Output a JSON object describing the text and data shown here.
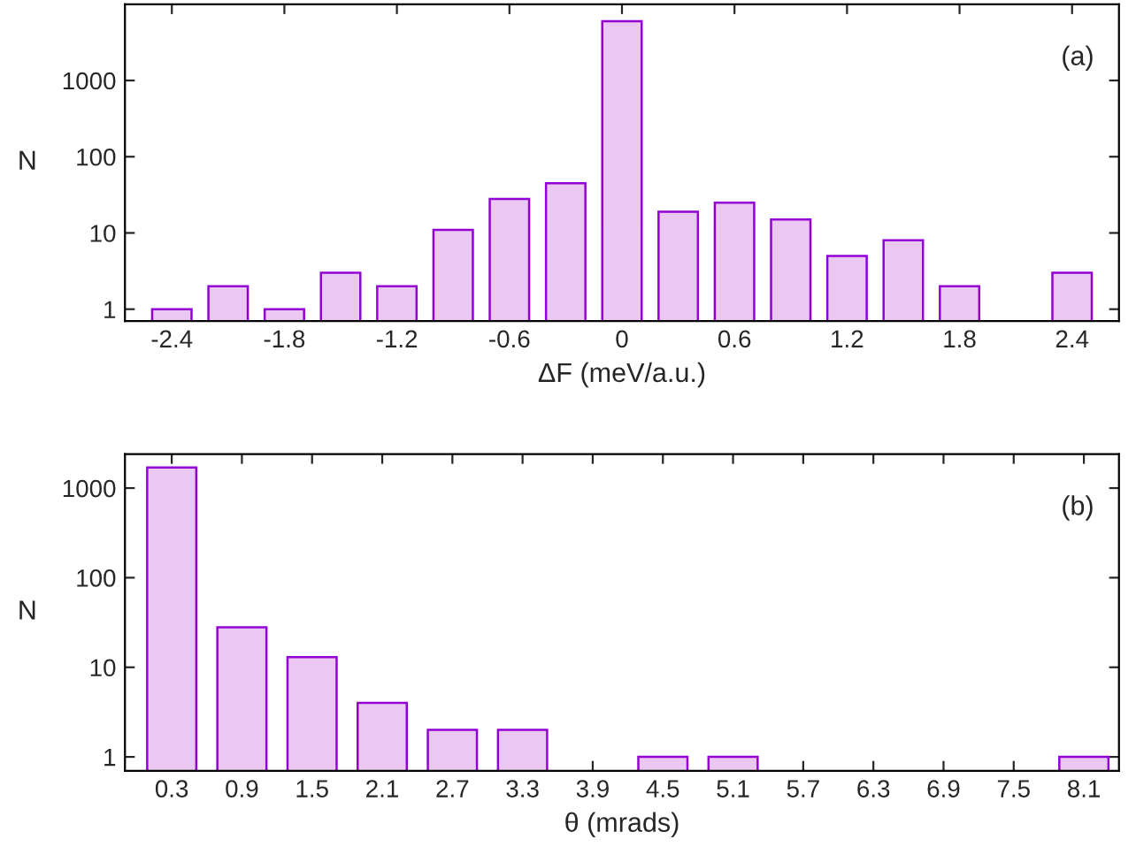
{
  "chart_data": [
    {
      "type": "bar",
      "xlabel": "ΔF (meV/a.u.)",
      "ylabel": "N",
      "annotations": [
        "(a)"
      ],
      "log": "y",
      "grid": false,
      "x": [
        -2.4,
        -2.1,
        -1.8,
        -1.5,
        -1.2,
        -0.9,
        -0.6,
        -0.3,
        0,
        0.3,
        0.6,
        0.9,
        1.2,
        1.5,
        1.8,
        2.4
      ],
      "series": [
        {
          "color": "#eac8f2",
          "values": [
            1,
            2,
            1,
            3,
            2,
            11,
            28,
            45,
            6000,
            19,
            25,
            15,
            5,
            8,
            2,
            3
          ]
        }
      ],
      "xlim": [
        -2.65,
        2.65
      ],
      "xticks": [
        -2.4,
        -1.8,
        -1.2,
        -0.6,
        0,
        0.6,
        1.2,
        1.8,
        2.4
      ],
      "ylim": [
        0.7,
        10000
      ],
      "yticks": [
        1,
        10,
        100,
        1000
      ]
    },
    {
      "type": "bar",
      "xlabel": "θ (mrads)",
      "ylabel": "N",
      "annotations": [
        "(b)"
      ],
      "log": "y",
      "grid": false,
      "x": [
        0.3,
        0.9,
        1.5,
        2.1,
        2.7,
        3.3,
        4.5,
        5.1,
        8.1
      ],
      "series": [
        {
          "color": "#eac8f2",
          "values": [
            1700,
            28,
            13,
            4,
            2,
            2,
            1,
            1,
            1
          ]
        }
      ],
      "xlim": [
        -0.1,
        8.4
      ],
      "xticks": [
        0.3,
        0.9,
        1.5,
        2.1,
        2.7,
        3.3,
        3.9,
        4.5,
        5.1,
        5.7,
        6.3,
        6.9,
        7.5,
        8.1
      ],
      "ylim": [
        0.7,
        2400
      ],
      "yticks": [
        1,
        10,
        100,
        1000
      ]
    }
  ]
}
